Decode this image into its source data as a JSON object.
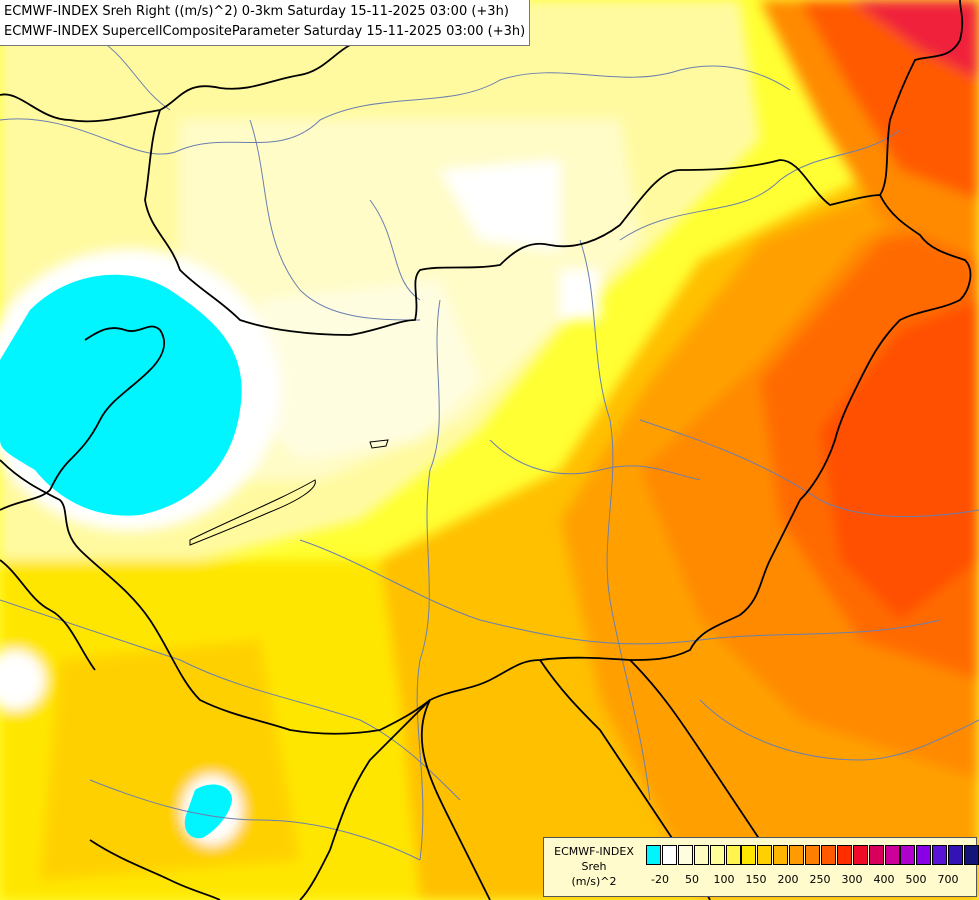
{
  "header": {
    "line1": "ECMWF-INDEX Sreh Right ((m/s)^2) 0-3km Saturday 15-11-2025 03:00 (+3h)",
    "line2": "ECMWF-INDEX SupercellCompositeParameter Saturday 15-11-2025 03:00 (+3h)"
  },
  "legend": {
    "title": "ECMWF-INDEX",
    "parameter": "Sreh",
    "unit": "(m/s)^2",
    "colors": [
      "#00f5ff",
      "#ffffff",
      "#fffde0",
      "#fffcc0",
      "#ffff9a",
      "#fff44d",
      "#ffe600",
      "#ffd000",
      "#ffb400",
      "#ff9b00",
      "#ff7f00",
      "#ff5a00",
      "#ff2d00",
      "#f00a2a",
      "#d8005a",
      "#cc0099",
      "#b000cc",
      "#8a00e6",
      "#5a14d6",
      "#3214b4",
      "#14147a"
    ],
    "ticks": [
      "-20",
      "50",
      "100",
      "150",
      "200",
      "250",
      "300",
      "400",
      "500",
      "700"
    ]
  }
}
